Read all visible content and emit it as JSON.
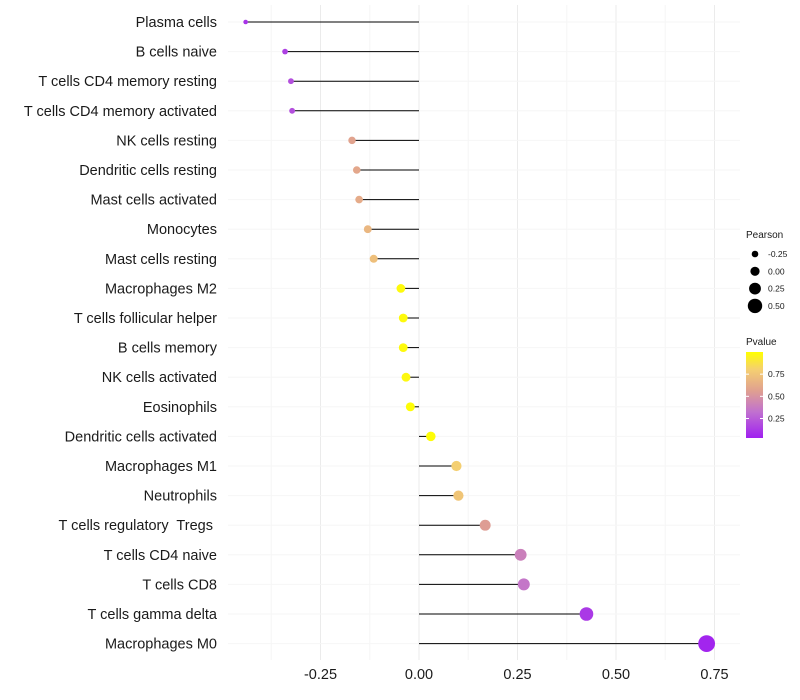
{
  "chart_data": {
    "type": "lollipop",
    "title": "",
    "xlabel": "",
    "ylabel": "",
    "xlim": [
      -0.45,
      0.75
    ],
    "xticks": [
      -0.25,
      0.0,
      0.25,
      0.5,
      0.75
    ],
    "xtick_labels": [
      "-0.25",
      "0.00",
      "0.25",
      "0.50",
      "0.75"
    ],
    "grid": true,
    "categories": [
      "Plasma cells",
      "B cells naive",
      "T cells CD4 memory resting",
      "T cells CD4 memory activated",
      "NK cells resting",
      "Dendritic cells resting",
      "Mast cells activated",
      "Monocytes",
      "Mast cells resting",
      "Macrophages M2",
      "T cells follicular helper",
      "B cells memory",
      "NK cells activated",
      "Eosinophils",
      "Dendritic cells activated",
      "Macrophages M1",
      "Neutrophils",
      "T cells regulatory  Tregs ",
      "T cells CD4 naive",
      "T cells CD8",
      "T cells gamma delta",
      "Macrophages M0"
    ],
    "pearson": [
      -0.44,
      -0.34,
      -0.325,
      -0.322,
      -0.17,
      -0.158,
      -0.152,
      -0.13,
      -0.115,
      -0.046,
      -0.04,
      -0.04,
      -0.033,
      -0.022,
      0.03,
      0.095,
      0.1,
      0.168,
      0.258,
      0.266,
      0.425,
      0.73
    ],
    "pvalue": [
      0.1,
      0.15,
      0.2,
      0.2,
      0.58,
      0.6,
      0.62,
      0.68,
      0.72,
      0.98,
      0.98,
      0.98,
      0.97,
      0.99,
      0.99,
      0.8,
      0.75,
      0.55,
      0.4,
      0.35,
      0.12,
      0.05
    ],
    "legend": {
      "size_title": "Pearson",
      "size_values": [
        -0.25,
        0.0,
        0.25,
        0.5
      ],
      "size_labels": [
        "-0.25",
        "0.00",
        "0.25",
        "0.50"
      ],
      "color_title": "Pvalue",
      "color_ticks": [
        0.25,
        0.5,
        0.75
      ],
      "color_tick_labels": [
        "0.25",
        "0.50",
        "0.75"
      ],
      "color_range": [
        0.03,
        1.0
      ],
      "color_low": "#a020f0",
      "color_mid": "#e0a080",
      "color_high": "#ffff00"
    }
  }
}
